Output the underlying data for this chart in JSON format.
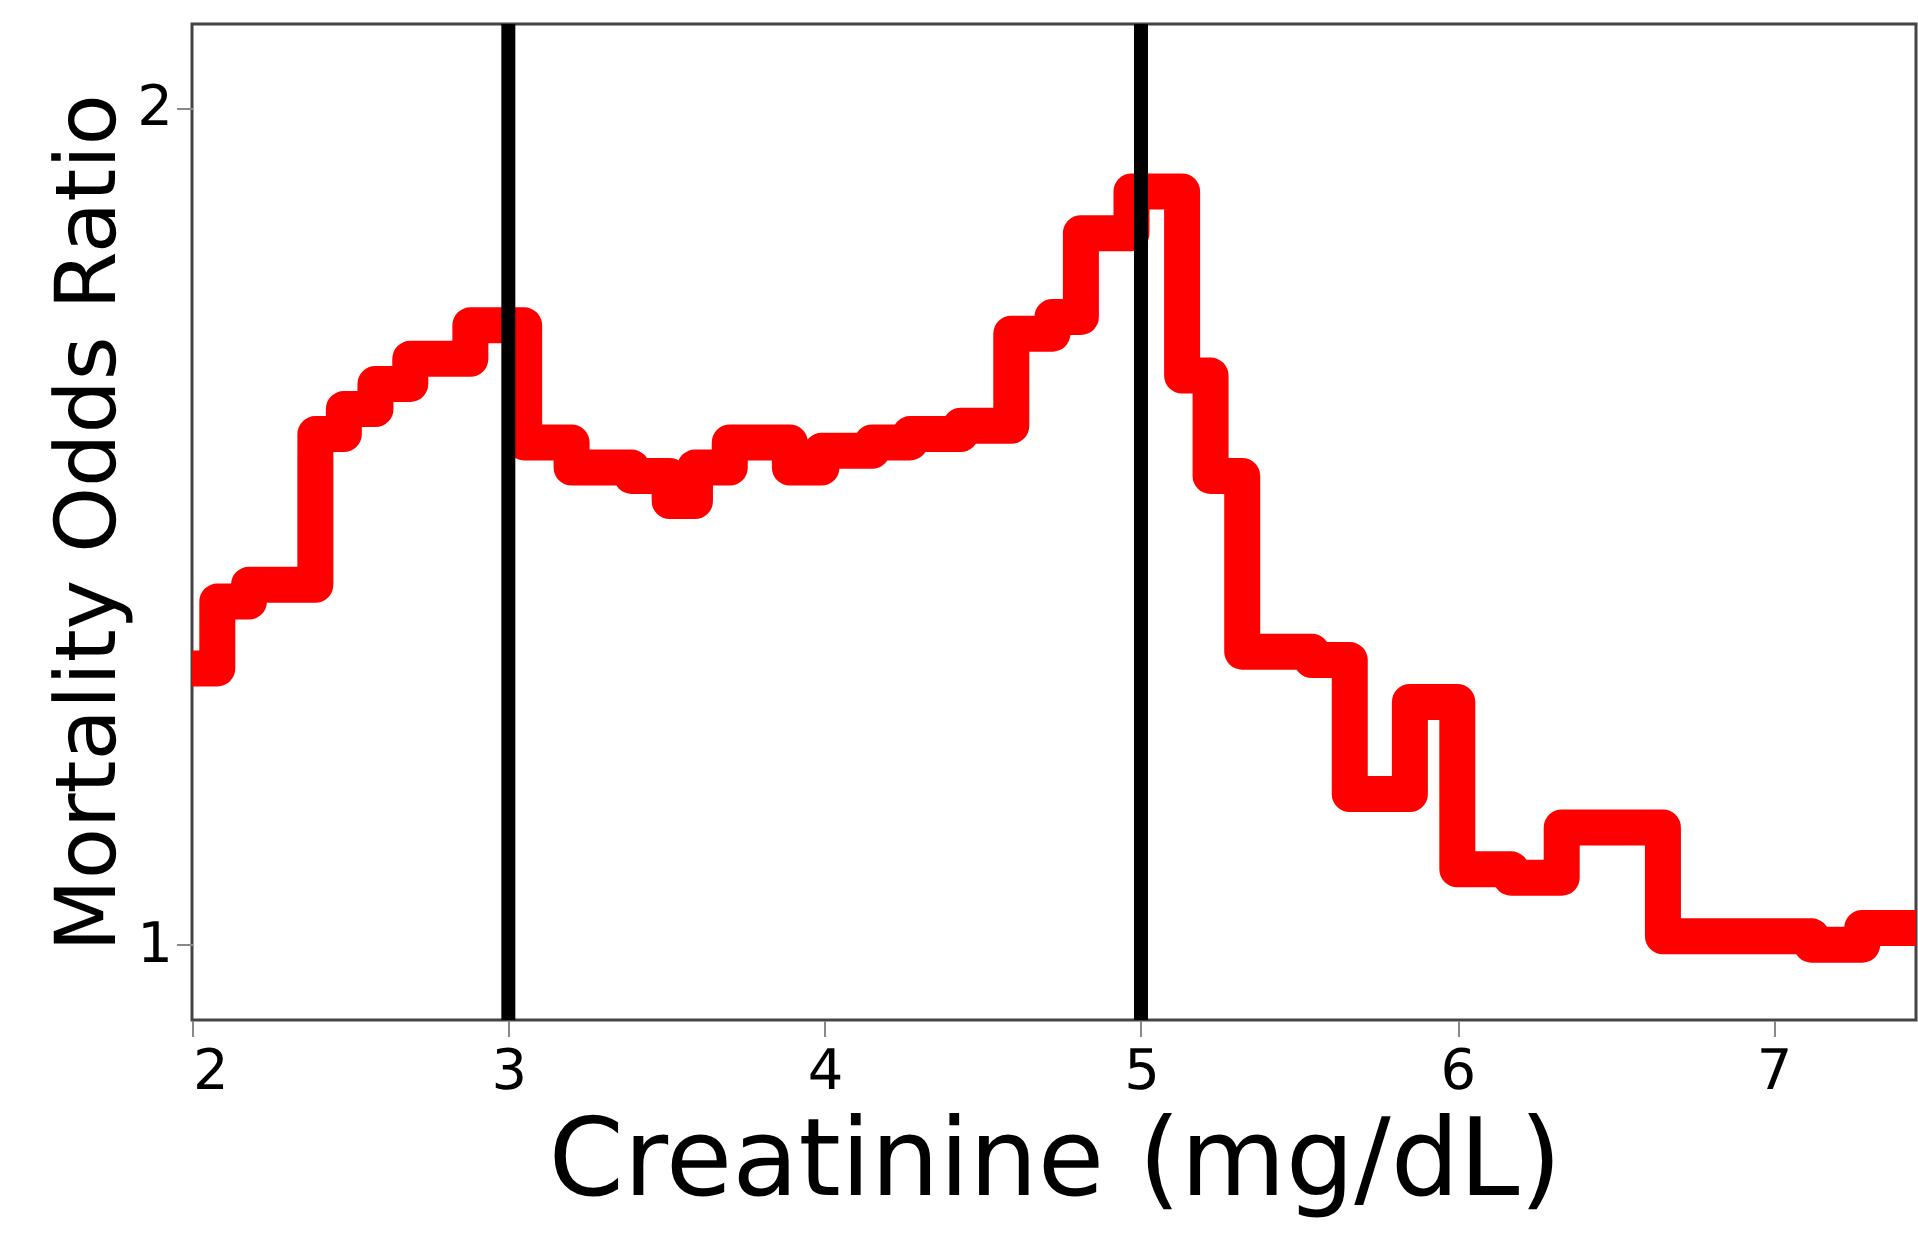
{
  "chart_data": {
    "type": "step",
    "xlabel": "Creatinine (mg/dL)",
    "ylabel": "Mortality Odds Ratio",
    "x": [
      2.0,
      2.08,
      2.18,
      2.39,
      2.48,
      2.58,
      2.69,
      2.88,
      3.05,
      3.2,
      3.39,
      3.51,
      3.59,
      3.7,
      3.89,
      3.99,
      4.15,
      4.27,
      4.43,
      4.59,
      4.72,
      4.81,
      4.97,
      5.13,
      5.22,
      5.32,
      5.54,
      5.66,
      5.85,
      6.0,
      6.17,
      6.33,
      6.65,
      6.9,
      7.12,
      7.28,
      7.45
    ],
    "series": [
      {
        "color": "#ff0000",
        "values": [
          1.33,
          1.41,
          1.43,
          1.61,
          1.64,
          1.67,
          1.7,
          1.74,
          1.6,
          1.57,
          1.56,
          1.53,
          1.57,
          1.6,
          1.57,
          1.59,
          1.6,
          1.61,
          1.62,
          1.73,
          1.75,
          1.85,
          1.9,
          1.68,
          1.56,
          1.35,
          1.34,
          1.18,
          1.29,
          1.09,
          1.08,
          1.14,
          1.01,
          1.01,
          1.0,
          1.02,
          1.02
        ]
      }
    ],
    "xlim": [
      2,
      7.45
    ],
    "ylim": [
      0.91,
      2.1
    ],
    "xticks": [
      2,
      3,
      4,
      5,
      6,
      7
    ],
    "yticks": [
      1,
      2
    ],
    "ref_lines": [
      {
        "axis": "x",
        "value": 3,
        "color": "#000000"
      },
      {
        "axis": "x",
        "value": 5,
        "color": "#000000"
      }
    ],
    "grid": false,
    "line_style": "solid",
    "marker": "none"
  }
}
